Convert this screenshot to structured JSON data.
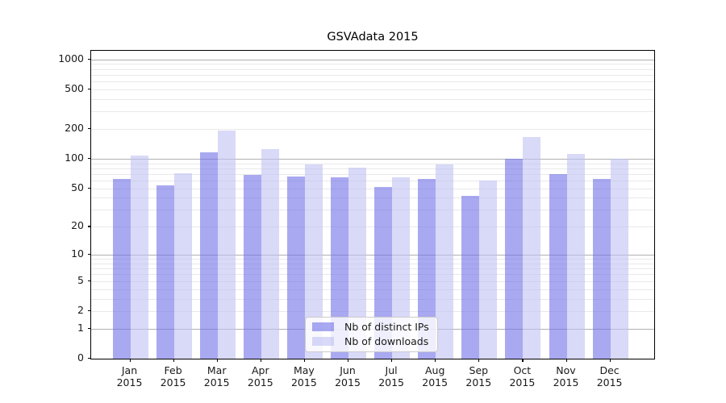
{
  "chart_data": {
    "type": "bar",
    "title": "GSVAdata 2015",
    "xlabel": "",
    "ylabel": "",
    "categories": [
      "Jan",
      "Feb",
      "Mar",
      "Apr",
      "May",
      "Jun",
      "Jul",
      "Aug",
      "Sep",
      "Oct",
      "Nov",
      "Dec"
    ],
    "category_year": "2015",
    "series": [
      {
        "name": "Nb of distinct IPs",
        "color": "rgba(112,112,232,0.6)",
        "color_hex_rendered": "#a9a9f1",
        "values": [
          62,
          54,
          116,
          68,
          66,
          65,
          52,
          62,
          42,
          100,
          70,
          62
        ]
      },
      {
        "name": "Nb of downloads",
        "color": "rgba(192,192,243,0.6)",
        "color_hex_rendered": "#d9d9f7",
        "values": [
          107,
          71,
          193,
          126,
          88,
          81,
          65,
          88,
          60,
          167,
          112,
          100
        ]
      }
    ],
    "yscale": "log1p",
    "ylim": [
      0,
      1220
    ],
    "yticks": [
      0,
      1,
      2,
      5,
      10,
      20,
      50,
      100,
      200,
      500,
      1000
    ],
    "grid": {
      "enabled": true,
      "major_lines": [
        1,
        10,
        100,
        1000
      ],
      "minor_multipliers": [
        2,
        3,
        4,
        5,
        6,
        7,
        8,
        9
      ],
      "major_color": "#b0b0b0",
      "minor_color": "#e9e9e9"
    },
    "legend_position": "inside lower-center-left"
  }
}
